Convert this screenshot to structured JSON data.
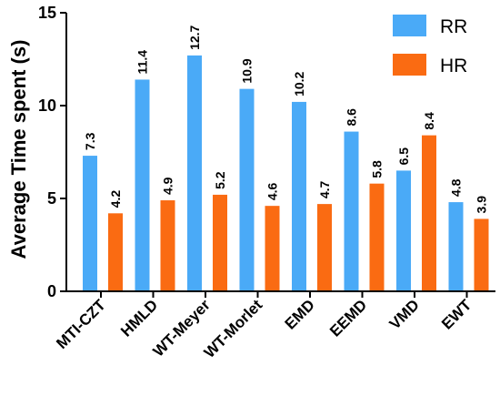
{
  "chart_data": {
    "type": "bar",
    "title": "",
    "xlabel": "",
    "ylabel": "Average Time spent (s)",
    "ylim": [
      0,
      15
    ],
    "yticks": [
      0,
      5,
      10,
      15
    ],
    "grid": false,
    "legend_position": "top-right",
    "categories": [
      "MTI-CZT",
      "HMLD",
      "WT-Meyer",
      "WT-Morlet",
      "EMD",
      "EEMD",
      "VMD",
      "EWT"
    ],
    "series": [
      {
        "name": "RR",
        "color": "#4aaaf7",
        "values": [
          7.3,
          11.4,
          12.7,
          10.9,
          10.2,
          8.6,
          6.5,
          4.8
        ]
      },
      {
        "name": "HR",
        "color": "#fa6b12",
        "values": [
          4.2,
          4.9,
          5.2,
          4.6,
          4.7,
          5.8,
          8.4,
          3.9
        ]
      }
    ]
  }
}
